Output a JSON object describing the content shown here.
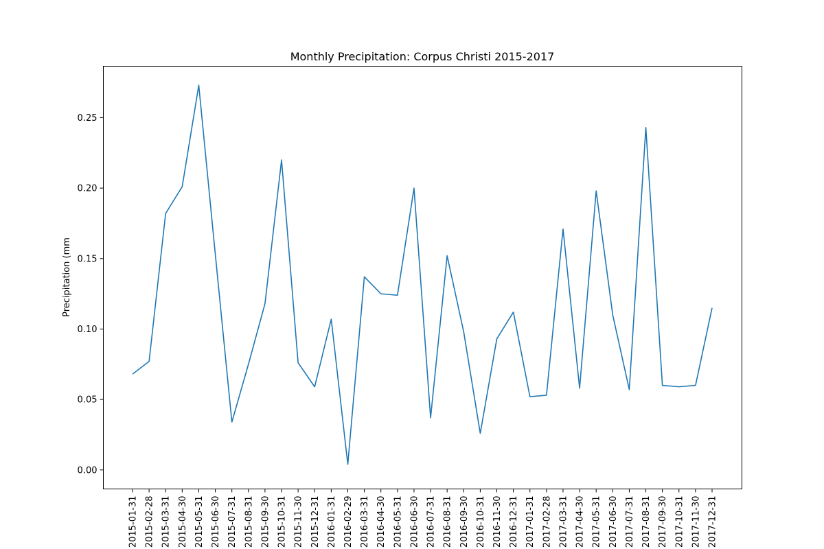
{
  "chart_data": {
    "type": "line",
    "title": "Monthly Precipitation: Corpus Christi 2015-2017",
    "xlabel": "",
    "ylabel": "Precipitation (mm",
    "ylim": [
      -0.0135,
      0.2865
    ],
    "yticks": [
      "0.00",
      "0.05",
      "0.10",
      "0.15",
      "0.20",
      "0.25"
    ],
    "grid": false,
    "color": "#1f77b4",
    "categories": [
      "2015-01-31",
      "2015-02-28",
      "2015-03-31",
      "2015-04-30",
      "2015-05-31",
      "2015-06-30",
      "2015-07-31",
      "2015-08-31",
      "2015-09-30",
      "2015-10-31",
      "2015-11-30",
      "2015-12-31",
      "2016-01-31",
      "2016-02-29",
      "2016-03-31",
      "2016-04-30",
      "2016-05-31",
      "2016-06-30",
      "2016-07-31",
      "2016-08-31",
      "2016-09-30",
      "2016-10-31",
      "2016-11-30",
      "2016-12-31",
      "2017-01-31",
      "2017-02-28",
      "2017-03-31",
      "2017-04-30",
      "2017-05-31",
      "2017-06-30",
      "2017-07-31",
      "2017-08-31",
      "2017-09-30",
      "2017-10-31",
      "2017-11-30",
      "2017-12-31"
    ],
    "values": [
      0.068,
      0.077,
      0.182,
      0.201,
      0.273,
      0.153,
      0.034,
      0.075,
      0.118,
      0.22,
      0.076,
      0.059,
      0.107,
      0.004,
      0.137,
      0.125,
      0.124,
      0.2,
      0.037,
      0.152,
      0.098,
      0.026,
      0.093,
      0.112,
      0.052,
      0.053,
      0.171,
      0.058,
      0.198,
      0.11,
      0.057,
      0.243,
      0.06,
      0.059,
      0.06,
      0.115
    ]
  }
}
